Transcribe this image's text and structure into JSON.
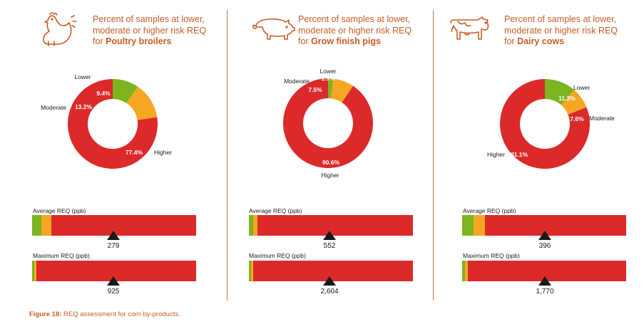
{
  "colors": {
    "higher": "#dc2a2a",
    "moderate": "#f5a623",
    "lower": "#7cb51f",
    "marker": "#1a1a1a",
    "accent": "#c75b26"
  },
  "panels": [
    {
      "title_line1": "Percent of samples at lower,",
      "title_line2": "moderate or higher risk REQ",
      "title_prefix": "for ",
      "species": "Poultry broilers",
      "icon": "chicken-icon",
      "avg_label": "Average REQ (ppb)",
      "max_label": "Maximum REQ (ppb)",
      "avg_value": "279",
      "max_value": "925"
    },
    {
      "title_line1": "Percent of samples at lower,",
      "title_line2": "moderate or higher risk REQ",
      "title_prefix": "for ",
      "species": "Grow finish pigs",
      "icon": "pig-icon",
      "avg_label": "Average REQ (ppb)",
      "max_label": "Maximum REQ (ppb)",
      "avg_value": "552",
      "max_value": "2,604"
    },
    {
      "title_line1": "Percent of samples at lower,",
      "title_line2": "moderate or higher risk REQ",
      "title_prefix": "for ",
      "species": "Dairy cows",
      "icon": "cow-icon",
      "avg_label": "Average REQ (ppb)",
      "max_label": "Maximum REQ (ppb)",
      "avg_value": "396",
      "max_value": "1,770"
    }
  ],
  "chart_data": [
    {
      "type": "pie",
      "categories": [
        "Lower",
        "Moderate",
        "Higher"
      ],
      "values": [
        9.4,
        13.2,
        77.4
      ],
      "value_labels": [
        "9.4%",
        "13.2%",
        "77.4%"
      ]
    },
    {
      "type": "pie",
      "categories": [
        "Lower",
        "Moderate",
        "Higher"
      ],
      "values": [
        1.9,
        7.5,
        90.6
      ],
      "value_labels": [
        "1.9%",
        "7.5%",
        "90.6%"
      ]
    },
    {
      "type": "pie",
      "categories": [
        "Lower",
        "Moderate",
        "Higher"
      ],
      "values": [
        11.3,
        7.6,
        81.1
      ],
      "value_labels": [
        "11.3%",
        "7.6%",
        "81.1%"
      ]
    }
  ],
  "caption": {
    "label": "Figure 18:",
    "text": " REQ assessment for corn by-products."
  }
}
